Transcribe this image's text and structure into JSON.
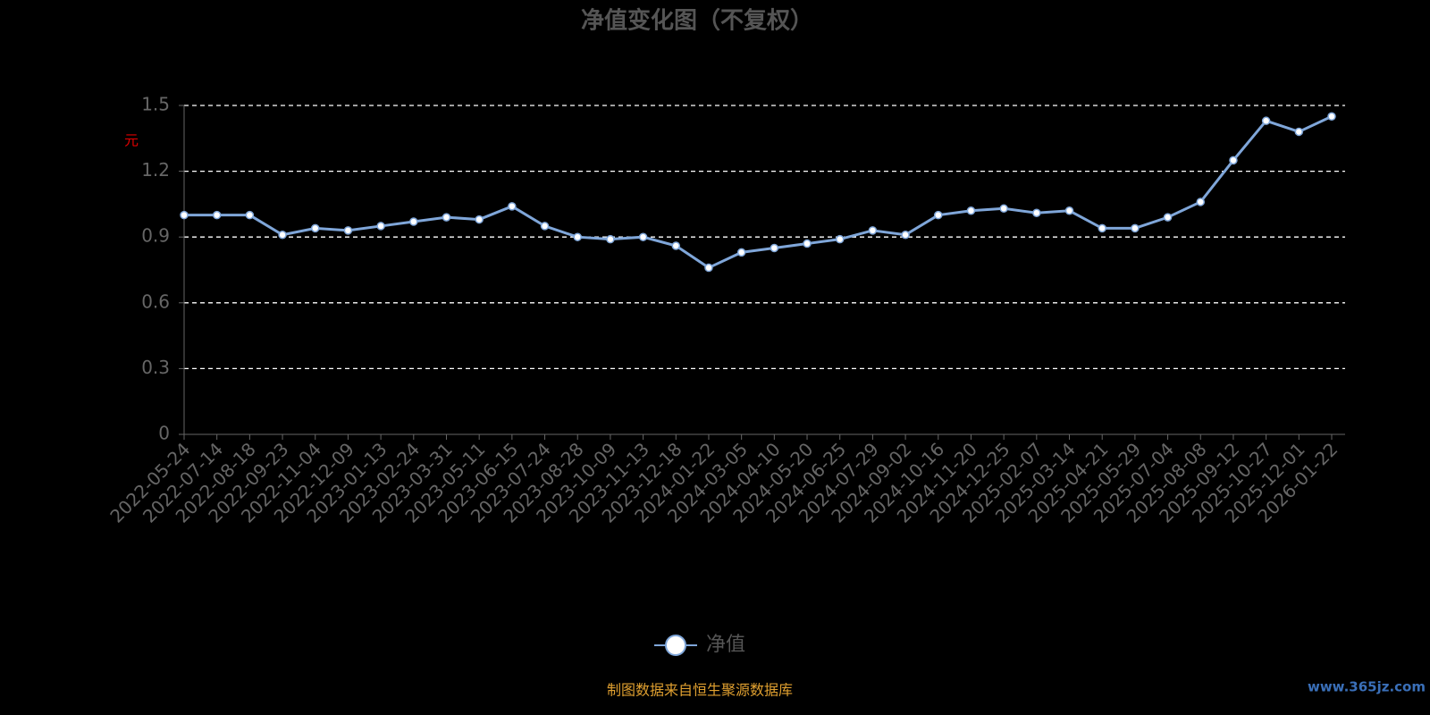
{
  "chart_data": {
    "type": "line",
    "title": "净值变化图（不复权）",
    "y_label": "元",
    "source_note": "制图数据来自恒生聚源数据库",
    "watermark": "www.365jz.com",
    "categories": [
      "2022-05-24",
      "2022-07-14",
      "2022-08-18",
      "2022-09-23",
      "2022-11-04",
      "2022-12-09",
      "2023-01-13",
      "2023-02-24",
      "2023-03-31",
      "2023-05-11",
      "2023-06-15",
      "2023-07-24",
      "2023-08-28",
      "2023-10-09",
      "2023-11-13",
      "2023-12-18",
      "2024-01-22",
      "2024-03-05",
      "2024-04-10",
      "2024-05-20",
      "2024-06-25",
      "2024-07-29",
      "2024-09-02",
      "2024-10-16",
      "2024-11-20",
      "2024-12-25",
      "2025-02-07",
      "2025-03-14",
      "2025-04-21",
      "2025-05-29",
      "2025-07-04",
      "2025-08-08",
      "2025-09-12",
      "2025-10-27",
      "2025-12-01",
      "2026-01-22"
    ],
    "series": [
      {
        "name": "净值",
        "color": "#7fa6d9",
        "values": [
          1.0,
          1.0,
          1.0,
          0.91,
          0.94,
          0.93,
          0.95,
          0.97,
          0.99,
          0.98,
          1.04,
          0.95,
          0.9,
          0.89,
          0.9,
          0.86,
          0.76,
          0.83,
          0.85,
          0.87,
          0.89,
          0.93,
          0.91,
          1.0,
          1.02,
          1.03,
          1.01,
          1.02,
          0.94,
          0.94,
          0.99,
          1.06,
          1.25,
          1.43,
          1.38,
          1.45
        ]
      }
    ],
    "ylim": [
      0,
      1.5
    ],
    "yticks": [
      0,
      0.3,
      0.6,
      0.9,
      1.2,
      1.5
    ],
    "grid": true
  }
}
